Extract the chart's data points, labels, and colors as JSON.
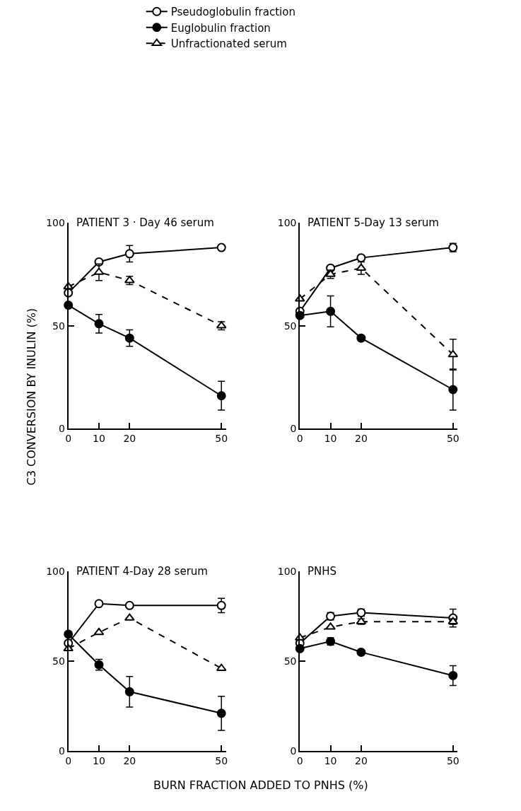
{
  "chart_data": [
    {
      "type": "line",
      "title": "PATIENT 3 · Day 46 serum",
      "ylabel": "C3 CONVERSION BY INULIN (%)",
      "x": [
        0,
        10,
        20,
        50
      ],
      "xlim": [
        0,
        51.5
      ],
      "ylim": [
        0,
        100
      ],
      "xticks": [
        0,
        10,
        20,
        50
      ],
      "yticks": [
        0,
        50,
        100
      ],
      "legend": "top",
      "series": [
        {
          "name": "Pseudoglobulin fraction",
          "color": "#000000",
          "colors": [
            "#ffffff",
            "#ffffff",
            "#ffffff",
            "#ffffff"
          ],
          "marker": "circle",
          "line_style": "solid",
          "values": [
            66,
            81,
            85,
            88
          ],
          "errors": [
            null,
            null,
            4,
            1
          ]
        },
        {
          "name": "Euglobulin fraction",
          "color": "#000000",
          "marker": "circle",
          "line_style": "solid",
          "values": [
            60,
            51,
            44,
            16
          ],
          "errors": [
            null,
            4.5,
            4,
            7
          ]
        },
        {
          "name": "Unfractionated serum",
          "color": "#000000",
          "colors": [
            "#ffffff",
            "#ffffff",
            "#ffffff",
            "#ffffff"
          ],
          "marker": "triangle",
          "line_style": "dashed",
          "values": [
            69,
            76,
            72,
            50
          ],
          "errors": [
            null,
            4,
            2,
            2
          ]
        }
      ]
    },
    {
      "type": "line",
      "title": "PATIENT 5-Day 13 serum",
      "x": [
        0,
        10,
        20,
        50
      ],
      "xlim": [
        0,
        51.5
      ],
      "ylim": [
        0,
        100
      ],
      "xticks": [
        0,
        10,
        20,
        50
      ],
      "yticks": [
        0,
        50,
        100
      ],
      "series": [
        {
          "color": "#000000",
          "colors": [
            "#ffffff",
            "#ffffff",
            "#ffffff",
            "#ffffff"
          ],
          "marker": "circle",
          "line_style": "solid",
          "values": [
            57,
            78,
            83,
            88
          ],
          "errors": [
            null,
            null,
            null,
            2
          ]
        },
        {
          "color": "#000000",
          "marker": "circle",
          "line_style": "solid",
          "values": [
            55,
            57,
            44,
            19
          ],
          "errors": [
            null,
            7.5,
            1,
            10
          ]
        },
        {
          "color": "#000000",
          "colors": [
            "#ffffff",
            "#ffffff",
            "#ffffff",
            "#ffffff"
          ],
          "marker": "triangle",
          "line_style": "dashed",
          "values": [
            63,
            75,
            78,
            36
          ],
          "errors": [
            null,
            2,
            3,
            7.5
          ]
        }
      ]
    },
    {
      "type": "line",
      "title": "PATIENT 4-Day 28 serum",
      "x": [
        0,
        10,
        20,
        50
      ],
      "xlim": [
        0,
        51.5
      ],
      "ylim": [
        0,
        100
      ],
      "xticks": [
        0,
        10,
        20,
        50
      ],
      "yticks": [
        0,
        50,
        100
      ],
      "series": [
        {
          "color": "#000000",
          "colors": [
            "#ffffff",
            "#ffffff",
            "#ffffff",
            "#ffffff"
          ],
          "marker": "circle",
          "line_style": "solid",
          "values": [
            60,
            82,
            81,
            81
          ],
          "errors": [
            null,
            null,
            null,
            4
          ]
        },
        {
          "color": "#000000",
          "marker": "circle",
          "line_style": "solid",
          "values": [
            65,
            48,
            33,
            21
          ],
          "errors": [
            null,
            3,
            8.5,
            9.5
          ]
        },
        {
          "color": "#000000",
          "colors": [
            "#ffffff",
            "#ffffff",
            "#ffffff",
            "#ffffff"
          ],
          "marker": "triangle",
          "line_style": "dashed",
          "values": [
            57,
            66,
            74,
            46
          ]
        }
      ]
    },
    {
      "type": "line",
      "title": "PNHS",
      "xlabel": "BURN FRACTION ADDED TO PNHS (%)",
      "x": [
        0,
        10,
        20,
        50
      ],
      "xlim": [
        0,
        51.5
      ],
      "ylim": [
        0,
        100
      ],
      "xticks": [
        0,
        10,
        20,
        50
      ],
      "yticks": [
        0,
        50,
        100
      ],
      "series": [
        {
          "color": "#000000",
          "colors": [
            "#ffffff",
            "#ffffff",
            "#ffffff",
            "#ffffff"
          ],
          "marker": "circle",
          "line_style": "solid",
          "values": [
            60,
            75,
            77,
            74
          ],
          "errors": [
            null,
            2,
            2,
            5
          ]
        },
        {
          "color": "#000000",
          "marker": "circle",
          "line_style": "solid",
          "values": [
            57,
            61,
            55,
            42
          ],
          "errors": [
            null,
            2,
            1,
            5.5
          ]
        },
        {
          "color": "#000000",
          "colors": [
            "#ffffff",
            "#ffffff",
            "#ffffff",
            "#ffffff"
          ],
          "marker": "triangle",
          "line_style": "dashed",
          "values": [
            63,
            69,
            72,
            72
          ],
          "errors": [
            null,
            null,
            1.5,
            1.5
          ]
        }
      ]
    }
  ]
}
